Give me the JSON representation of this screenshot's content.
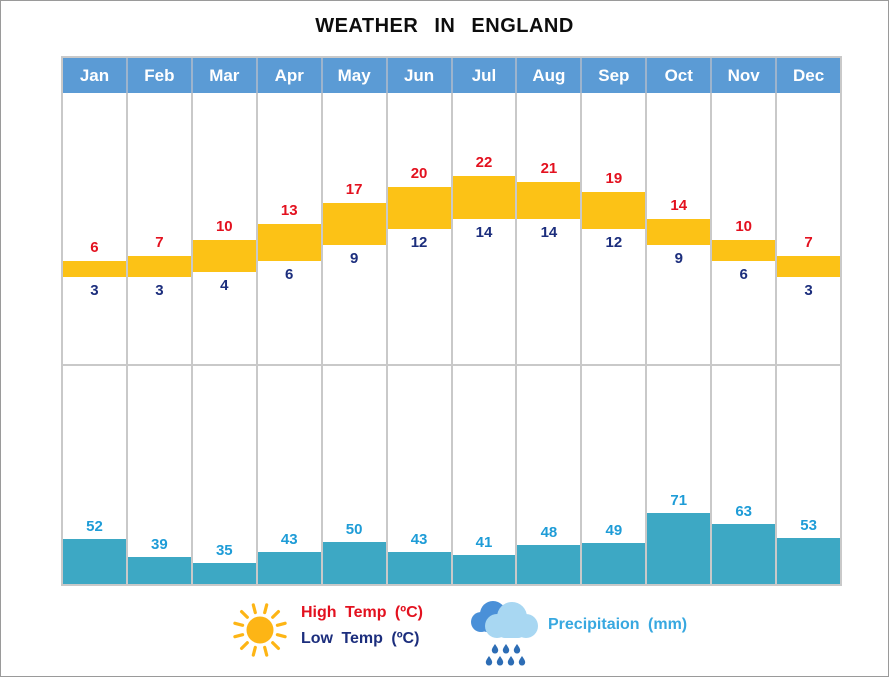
{
  "title": "WEATHER IN ENGLAND",
  "chart_data": {
    "type": "bar",
    "title": "WEATHER IN ENGLAND",
    "categories": [
      "Jan",
      "Feb",
      "Mar",
      "Apr",
      "May",
      "Jun",
      "Jul",
      "Aug",
      "Sep",
      "Oct",
      "Nov",
      "Dec"
    ],
    "series": [
      {
        "name": "High Temp (ºC)",
        "values": [
          6,
          7,
          10,
          13,
          17,
          20,
          22,
          21,
          19,
          14,
          10,
          7
        ]
      },
      {
        "name": "Low Temp (ºC)",
        "values": [
          3,
          3,
          4,
          6,
          9,
          12,
          14,
          14,
          12,
          9,
          6,
          3
        ]
      },
      {
        "name": "Precipitaion (mm)",
        "values": [
          52,
          39,
          35,
          43,
          50,
          43,
          41,
          48,
          49,
          71,
          63,
          53
        ]
      }
    ],
    "legend_position": "bottom",
    "grid": "column-separators-only",
    "notes": "Temperature shown as floating range bars (low to high); precipitation as bottom-anchored bars."
  },
  "legend": {
    "high_temp_label": "High Temp (ºC)",
    "low_temp_label": "Low Temp (ºC)",
    "precipitation_label": "Precipitaion (mm)"
  },
  "colors": {
    "header_blue": "#5b9bd5",
    "temp_bar_yellow": "#fcc216",
    "precip_bar_teal": "#3da8c4",
    "high_label_red": "#e3111f",
    "low_label_navy": "#1c2e7d",
    "precip_label_blue": "#1e9cd7",
    "legend_precip_blue": "#38a8e0",
    "grid_gray": "#c9c9c9",
    "cloud_back_blue": "#4a90d8",
    "cloud_front_blue": "#a8d7f2",
    "raindrop_blue": "#2d6db5",
    "sun_yellow": "#fdb515"
  }
}
